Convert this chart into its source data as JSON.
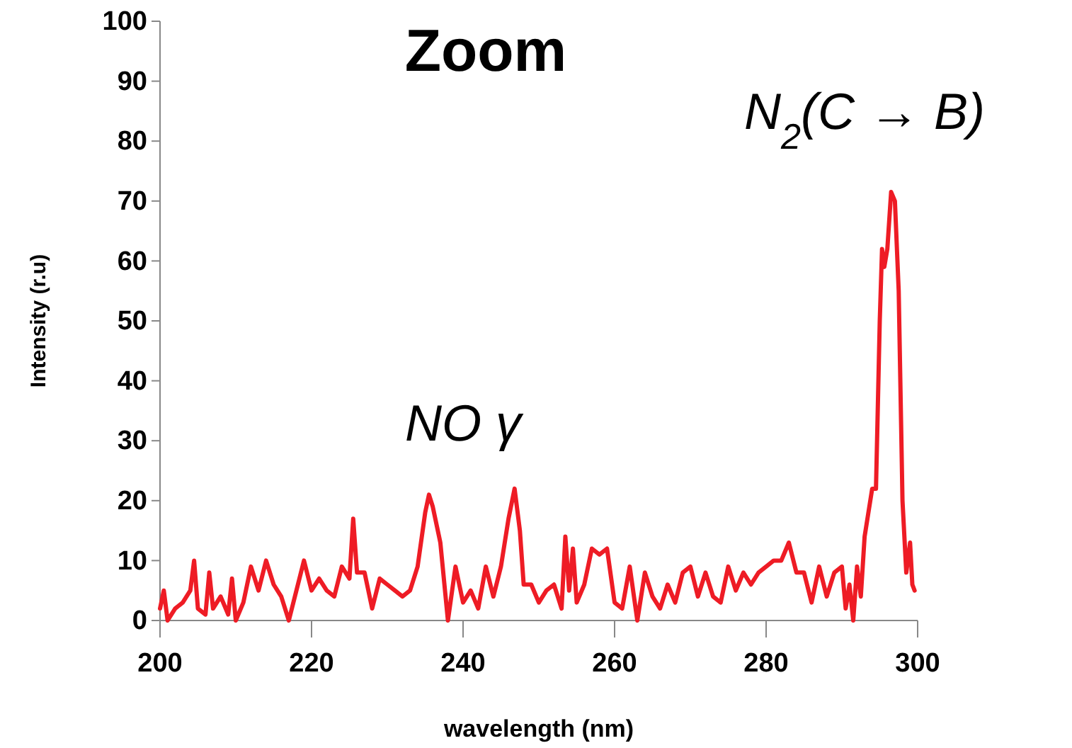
{
  "chart_data": {
    "type": "line",
    "title": "Zoom",
    "xlabel": "wavelength (nm)",
    "ylabel": "Intensity (r.u)",
    "xlim": [
      200,
      300
    ],
    "xticks": [
      200,
      220,
      240,
      260,
      280,
      300
    ],
    "ylim": [
      0,
      100
    ],
    "yticks": [
      0,
      10,
      20,
      30,
      40,
      50,
      60,
      70,
      80,
      90,
      100
    ],
    "grid": false,
    "annotations": [
      "NO γ",
      "N$_{2}$(C → B)"
    ],
    "series": [
      {
        "color": "#ee1c25",
        "x": [
          200,
          200.5,
          201,
          202,
          203,
          204,
          204.5,
          205,
          206,
          206.5,
          207,
          208,
          209,
          209.5,
          210,
          211,
          212,
          213,
          214,
          215,
          216,
          217,
          218,
          219,
          220,
          221,
          222,
          223,
          224,
          225,
          225.5,
          226,
          227,
          228,
          229,
          230,
          231,
          232,
          233,
          234,
          235,
          235.5,
          236,
          237,
          238,
          239,
          240,
          241,
          242,
          243,
          244,
          245,
          246,
          246.8,
          247.5,
          248,
          249,
          250,
          251,
          252,
          253,
          253.5,
          254,
          254.5,
          255,
          256,
          257,
          258,
          259,
          260,
          261,
          262,
          263,
          264,
          265,
          266,
          267,
          268,
          269,
          270,
          271,
          272,
          273,
          274,
          275,
          276,
          277,
          278,
          279,
          280,
          281,
          282,
          283,
          284,
          285,
          286,
          287,
          288,
          289,
          290,
          290.5,
          291,
          291.5,
          292,
          292.5,
          293,
          294,
          294.5,
          295,
          295.3,
          295.6,
          296,
          296.5,
          297,
          297.5,
          298,
          298.5,
          299,
          299.3,
          299.6
        ],
        "values": [
          2,
          5,
          0,
          2,
          3,
          5,
          10,
          2,
          1,
          8,
          2,
          4,
          1,
          7,
          0,
          3,
          9,
          5,
          10,
          6,
          4,
          0,
          5,
          10,
          5,
          7,
          5,
          4,
          9,
          7,
          17,
          8,
          8,
          2,
          7,
          6,
          5,
          4,
          5,
          9,
          18,
          21,
          19,
          13,
          0,
          9,
          3,
          5,
          2,
          9,
          4,
          9,
          17,
          22,
          15,
          6,
          6,
          3,
          5,
          6,
          2,
          14,
          5,
          12,
          3,
          6,
          12,
          11,
          12,
          3,
          2,
          9,
          0,
          8,
          4,
          2,
          6,
          3,
          8,
          9,
          4,
          8,
          4,
          3,
          9,
          5,
          8,
          6,
          8,
          9,
          10,
          10,
          13,
          8,
          8,
          3,
          9,
          4,
          8,
          9,
          2,
          6,
          0,
          9,
          4,
          14,
          22,
          22,
          50,
          62,
          59,
          62,
          71.5,
          70,
          55,
          20,
          8,
          13,
          6,
          5
        ]
      }
    ]
  }
}
